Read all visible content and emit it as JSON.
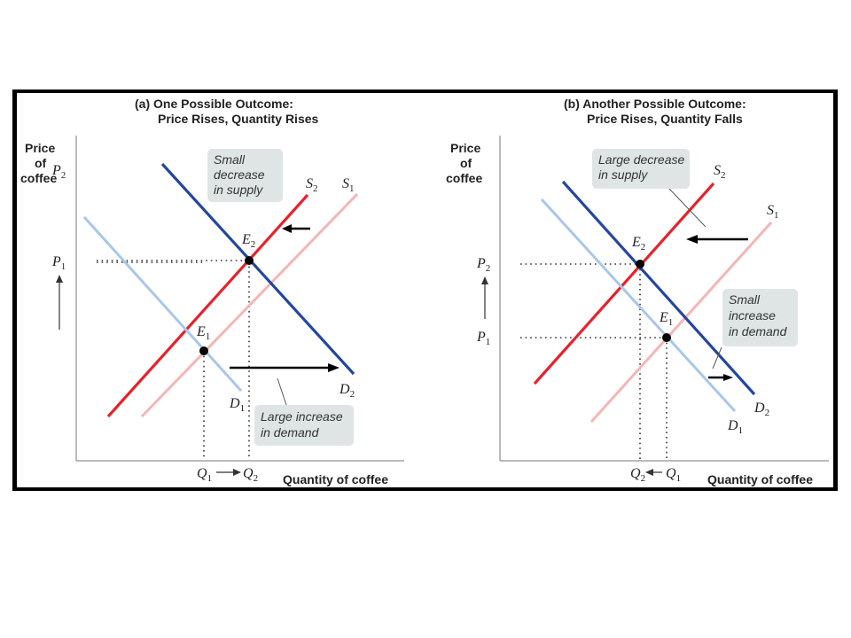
{
  "panel_a": {
    "title_line1": "(a) One Possible Outcome:",
    "title_line2": "Price Rises, Quantity Rises",
    "y_axis_label": [
      "Price",
      "of",
      "coffee"
    ],
    "x_axis_label": "Quantity of coffee",
    "labels": {
      "S2": "S",
      "S2_sub": "2",
      "S1": "S",
      "S1_sub": "1",
      "D1": "D",
      "D1_sub": "1",
      "D2": "D",
      "D2_sub": "2",
      "E1": "E",
      "E1_sub": "1",
      "E2": "E",
      "E2_sub": "2",
      "P1": "P",
      "P1_sub": "1",
      "P2": "P",
      "P2_sub": "2",
      "Q1": "Q",
      "Q1_sub": "1",
      "Q2": "Q",
      "Q2_sub": "2"
    },
    "notes": {
      "supply": [
        "Small",
        "decrease",
        "in supply"
      ],
      "demand": [
        "Large increase",
        "in demand"
      ]
    }
  },
  "panel_b": {
    "title_line1": "(b) Another Possible Outcome:",
    "title_line2": "Price Rises, Quantity Falls",
    "y_axis_label": [
      "Price",
      "of",
      "coffee"
    ],
    "x_axis_label": "Quantity of coffee",
    "labels": {
      "S2": "S",
      "S2_sub": "2",
      "S1": "S",
      "S1_sub": "1",
      "D1": "D",
      "D1_sub": "1",
      "D2": "D",
      "D2_sub": "2",
      "E1": "E",
      "E1_sub": "1",
      "E2": "E",
      "E2_sub": "2",
      "P1": "P",
      "P1_sub": "1",
      "P2": "P",
      "P2_sub": "2",
      "Q1": "Q",
      "Q1_sub": "1",
      "Q2": "Q",
      "Q2_sub": "2"
    },
    "notes": {
      "supply": [
        "Large decrease",
        "in supply"
      ],
      "demand": [
        "Small",
        "increase",
        "in demand"
      ]
    }
  },
  "colors": {
    "s1": "#f5b5b5",
    "s2": "#e8212b",
    "d1": "#a9c6ea",
    "d2": "#2446a0",
    "note_bg": "#dfe5e5",
    "frame": "#000000"
  }
}
